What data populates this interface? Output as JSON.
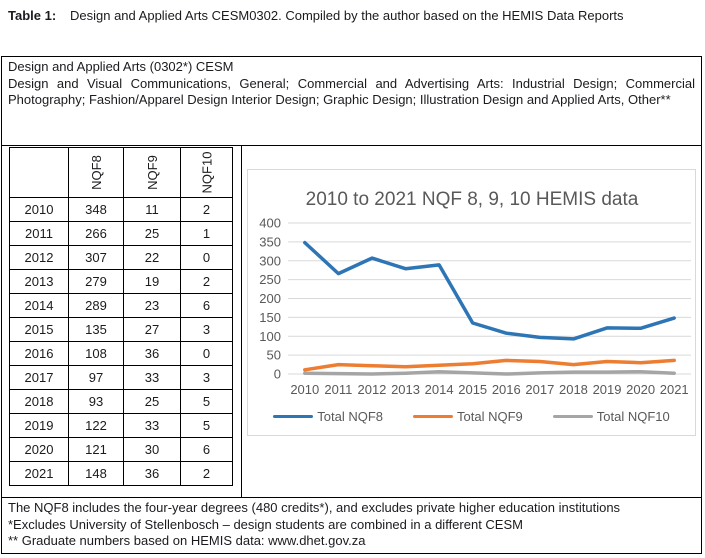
{
  "caption": {
    "label": "Table 1:",
    "text": "Design and Applied Arts CESM0302. Compiled by the author based on the HEMIS Data Reports"
  },
  "header": {
    "cesm_title": "Design and Applied Arts (0302*) CESM",
    "description": "Design and Visual Communications, General; Commercial and Advertising Arts: Industrial Design; Commercial Photography; Fashion/Apparel Design Interior Design; Graphic Design; Illustration Design and Applied Arts, Other**"
  },
  "table": {
    "columns": [
      "",
      "NQF8",
      "NQF9",
      "NQF10"
    ],
    "rows": [
      {
        "year": "2010",
        "nqf8": 348,
        "nqf9": 11,
        "nqf10": 2
      },
      {
        "year": "2011",
        "nqf8": 266,
        "nqf9": 25,
        "nqf10": 1
      },
      {
        "year": "2012",
        "nqf8": 307,
        "nqf9": 22,
        "nqf10": 0
      },
      {
        "year": "2013",
        "nqf8": 279,
        "nqf9": 19,
        "nqf10": 2
      },
      {
        "year": "2014",
        "nqf8": 289,
        "nqf9": 23,
        "nqf10": 6
      },
      {
        "year": "2015",
        "nqf8": 135,
        "nqf9": 27,
        "nqf10": 3
      },
      {
        "year": "2016",
        "nqf8": 108,
        "nqf9": 36,
        "nqf10": 0
      },
      {
        "year": "2017",
        "nqf8": 97,
        "nqf9": 33,
        "nqf10": 3
      },
      {
        "year": "2018",
        "nqf8": 93,
        "nqf9": 25,
        "nqf10": 5
      },
      {
        "year": "2019",
        "nqf8": 122,
        "nqf9": 33,
        "nqf10": 5
      },
      {
        "year": "2020",
        "nqf8": 121,
        "nqf9": 30,
        "nqf10": 6
      },
      {
        "year": "2021",
        "nqf8": 148,
        "nqf9": 36,
        "nqf10": 2
      }
    ]
  },
  "chart_data": {
    "type": "line",
    "title": "2010 to 2021 NQF 8, 9, 10 HEMIS data",
    "x": [
      "2010",
      "2011",
      "2012",
      "2013",
      "2014",
      "2015",
      "2016",
      "2017",
      "2018",
      "2019",
      "2020",
      "2021"
    ],
    "series": [
      {
        "name": "Total NQF8",
        "color": "#2E75B6",
        "values": [
          348,
          266,
          307,
          279,
          289,
          135,
          108,
          97,
          93,
          122,
          121,
          148
        ]
      },
      {
        "name": "Total NQF9",
        "color": "#ED7D31",
        "values": [
          11,
          25,
          22,
          19,
          23,
          27,
          36,
          33,
          25,
          33,
          30,
          36
        ]
      },
      {
        "name": "Total NQF10",
        "color": "#A5A5A5",
        "values": [
          2,
          1,
          0,
          2,
          6,
          3,
          0,
          3,
          5,
          5,
          6,
          2
        ]
      }
    ],
    "ylim": [
      0,
      400
    ],
    "ytick_step": 50,
    "grid": true,
    "legend_position": "bottom",
    "title_color": "#595959",
    "axis_label_color": "#595959",
    "gridline_color": "#D9D9D9"
  },
  "notes": {
    "lines": [
      "The NQF8 includes the four-year degrees (480 credits*), and excludes private higher education institutions",
      "*Excludes University of Stellenbosch – design students are combined in a different CESM",
      "** Graduate numbers based on HEMIS data: www.dhet.gov.za"
    ]
  }
}
